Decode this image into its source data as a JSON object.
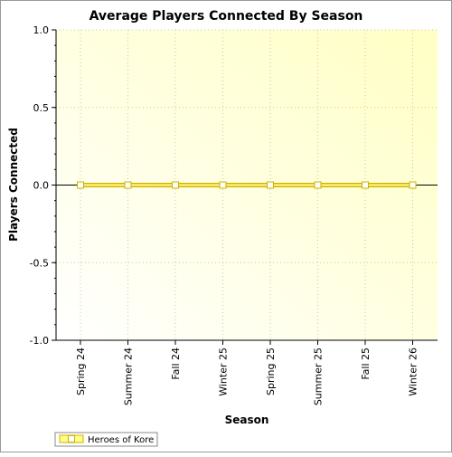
{
  "chart_data": {
    "type": "line",
    "title": "Average Players Connected By Season",
    "xlabel": "Season",
    "ylabel": "Players Connected",
    "categories": [
      "Spring 24",
      "Summer 24",
      "Fall 24",
      "Winter 25",
      "Spring 25",
      "Summer 25",
      "Fall 25",
      "Winter 26"
    ],
    "series": [
      {
        "name": "Heroes of Kore",
        "values": [
          0,
          0,
          0,
          0,
          0,
          0,
          0,
          0
        ]
      }
    ],
    "ylim": [
      -1.0,
      1.0
    ],
    "yticks": [
      "1.0",
      "0.5",
      "0.0",
      "-0.5",
      "-1.0"
    ],
    "grid": true,
    "legend": "bottom-left"
  },
  "colors": {
    "series_line": "#d4af00",
    "series_fill": "#ffff88",
    "marker_fill": "#ffffff",
    "marker_stroke": "#c8b400",
    "plot_bg_light": "#ffffff",
    "plot_bg_dark": "#ffffc8",
    "grid": "#c8c8a0"
  }
}
